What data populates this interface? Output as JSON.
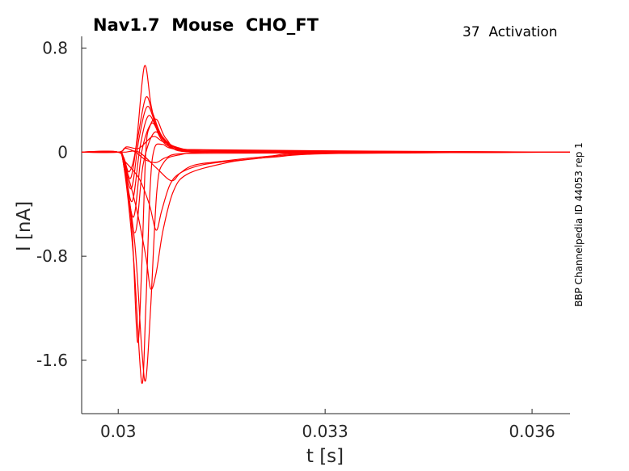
{
  "chart_data": {
    "type": "line",
    "title": "Nav1.7  Mouse  CHO_FT",
    "subtitle": "37  Activation",
    "side_label": "BBP Channelpedia ID 44053 rep 1",
    "xlabel": "t [s]",
    "ylabel": "I [nA]",
    "xlim": [
      0.02947,
      0.03655
    ],
    "ylim": [
      -2.01,
      0.89
    ],
    "xticks": [
      {
        "v": 0.03,
        "label": "0.03"
      },
      {
        "v": 0.033,
        "label": "0.033"
      },
      {
        "v": 0.036,
        "label": "0.036"
      }
    ],
    "yticks": [
      {
        "v": 0.8,
        "label": "0.8"
      },
      {
        "v": 0,
        "label": "0"
      },
      {
        "v": -0.8,
        "label": "-0.8"
      },
      {
        "v": -1.6,
        "label": "-1.6"
      }
    ],
    "grid": false,
    "color": "#ff0000",
    "series": [
      {
        "name": "trace-1",
        "points": [
          [
            0.02947,
            0
          ],
          [
            0.03,
            0
          ],
          [
            0.03008,
            -0.04
          ],
          [
            0.03016,
            -0.15
          ],
          [
            0.03026,
            0.05
          ],
          [
            0.03038,
            0.66
          ],
          [
            0.03048,
            0.35
          ],
          [
            0.0306,
            0.12
          ],
          [
            0.0308,
            0.03
          ],
          [
            0.0312,
            0
          ],
          [
            0.03655,
            0
          ]
        ]
      },
      {
        "name": "trace-2",
        "points": [
          [
            0.02947,
            0
          ],
          [
            0.03,
            0
          ],
          [
            0.03008,
            -0.05
          ],
          [
            0.03018,
            -0.2
          ],
          [
            0.03028,
            0.1
          ],
          [
            0.0304,
            0.42
          ],
          [
            0.0305,
            0.3
          ],
          [
            0.03064,
            0.12
          ],
          [
            0.0309,
            0.02
          ],
          [
            0.0313,
            0
          ],
          [
            0.03655,
            0
          ]
        ]
      },
      {
        "name": "trace-3",
        "points": [
          [
            0.02947,
            0
          ],
          [
            0.03,
            0
          ],
          [
            0.03008,
            -0.06
          ],
          [
            0.03019,
            -0.28
          ],
          [
            0.0303,
            0.1
          ],
          [
            0.03042,
            0.35
          ],
          [
            0.03054,
            0.22
          ],
          [
            0.03068,
            0.08
          ],
          [
            0.031,
            0.01
          ],
          [
            0.03655,
            0
          ]
        ]
      },
      {
        "name": "trace-4",
        "points": [
          [
            0.02947,
            0
          ],
          [
            0.03,
            0
          ],
          [
            0.03008,
            -0.07
          ],
          [
            0.0302,
            -0.38
          ],
          [
            0.03032,
            0.05
          ],
          [
            0.03044,
            0.28
          ],
          [
            0.03058,
            0.16
          ],
          [
            0.03075,
            0.05
          ],
          [
            0.0311,
            0
          ],
          [
            0.03655,
            0
          ]
        ]
      },
      {
        "name": "trace-5",
        "points": [
          [
            0.02947,
            0
          ],
          [
            0.03,
            0
          ],
          [
            0.03008,
            -0.08
          ],
          [
            0.03022,
            -0.5
          ],
          [
            0.03034,
            0.0
          ],
          [
            0.03048,
            0.22
          ],
          [
            0.0306,
            0.14
          ],
          [
            0.0308,
            0.04
          ],
          [
            0.0312,
            0
          ],
          [
            0.03655,
            0
          ]
        ]
      },
      {
        "name": "trace-6",
        "points": [
          [
            0.02947,
            0
          ],
          [
            0.03,
            0
          ],
          [
            0.03008,
            -0.09
          ],
          [
            0.03024,
            -0.62
          ],
          [
            0.03036,
            -0.1
          ],
          [
            0.03052,
            0.15
          ],
          [
            0.03068,
            0.08
          ],
          [
            0.0309,
            0.02
          ],
          [
            0.0313,
            0
          ],
          [
            0.03655,
            0
          ]
        ]
      },
      {
        "name": "trace-7",
        "points": [
          [
            0.02947,
            0
          ],
          [
            0.03,
            0
          ],
          [
            0.03008,
            -0.1
          ],
          [
            0.0302,
            -0.6
          ],
          [
            0.03028,
            -1.46
          ],
          [
            0.03034,
            -0.9
          ],
          [
            0.0304,
            0.0
          ],
          [
            0.03046,
            0.2
          ],
          [
            0.03056,
            0.25
          ],
          [
            0.0307,
            0.1
          ],
          [
            0.031,
            0.02
          ],
          [
            0.03655,
            0
          ]
        ]
      },
      {
        "name": "trace-8",
        "points": [
          [
            0.02947,
            0
          ],
          [
            0.03,
            0
          ],
          [
            0.03008,
            -0.1
          ],
          [
            0.03022,
            -0.8
          ],
          [
            0.03034,
            -1.77
          ],
          [
            0.0304,
            -1.2
          ],
          [
            0.03046,
            -0.3
          ],
          [
            0.03052,
            0.02
          ],
          [
            0.03064,
            0.06
          ],
          [
            0.0309,
            0.02
          ],
          [
            0.03655,
            0
          ]
        ]
      },
      {
        "name": "trace-9",
        "points": [
          [
            0.02947,
            0
          ],
          [
            0.03,
            0
          ],
          [
            0.03008,
            -0.1
          ],
          [
            0.03024,
            -0.7
          ],
          [
            0.03034,
            -1.5
          ],
          [
            0.0304,
            -1.75
          ],
          [
            0.03047,
            -1.2
          ],
          [
            0.03056,
            -0.3
          ],
          [
            0.03066,
            -0.08
          ],
          [
            0.0309,
            -0.02
          ],
          [
            0.0315,
            0
          ],
          [
            0.03655,
            0
          ]
        ]
      },
      {
        "name": "trace-10",
        "points": [
          [
            0.02947,
            0
          ],
          [
            0.03,
            0
          ],
          [
            0.03008,
            -0.08
          ],
          [
            0.03025,
            -0.4
          ],
          [
            0.0304,
            -0.8
          ],
          [
            0.03047,
            -1.05
          ],
          [
            0.03055,
            -0.93
          ],
          [
            0.03065,
            -0.6
          ],
          [
            0.0308,
            -0.3
          ],
          [
            0.031,
            -0.17
          ],
          [
            0.0315,
            -0.09
          ],
          [
            0.032,
            -0.05
          ],
          [
            0.033,
            -0.01
          ],
          [
            0.03655,
            0
          ]
        ]
      },
      {
        "name": "trace-11",
        "points": [
          [
            0.02947,
            0
          ],
          [
            0.03,
            0
          ],
          [
            0.03008,
            -0.06
          ],
          [
            0.0303,
            -0.2
          ],
          [
            0.03045,
            -0.4
          ],
          [
            0.03055,
            -0.6
          ],
          [
            0.03063,
            -0.45
          ],
          [
            0.03075,
            -0.25
          ],
          [
            0.0309,
            -0.16
          ],
          [
            0.0312,
            -0.1
          ],
          [
            0.0316,
            -0.07
          ],
          [
            0.0322,
            -0.04
          ],
          [
            0.0332,
            -0.01
          ],
          [
            0.03655,
            0
          ]
        ]
      },
      {
        "name": "trace-12",
        "points": [
          [
            0.02947,
            0
          ],
          [
            0.03,
            0
          ],
          [
            0.0301,
            0.0
          ],
          [
            0.0303,
            0.0
          ],
          [
            0.03055,
            -0.12
          ],
          [
            0.03077,
            -0.22
          ],
          [
            0.0309,
            -0.16
          ],
          [
            0.0311,
            -0.1
          ],
          [
            0.0315,
            -0.07
          ],
          [
            0.0322,
            -0.03
          ],
          [
            0.0328,
            -0.01
          ],
          [
            0.03655,
            0
          ]
        ]
      },
      {
        "name": "trace-13",
        "points": [
          [
            0.02947,
            0
          ],
          [
            0.03,
            0
          ],
          [
            0.0301,
            0.03
          ],
          [
            0.03025,
            0.0
          ],
          [
            0.0304,
            -0.06
          ],
          [
            0.03055,
            -0.08
          ],
          [
            0.0307,
            -0.04
          ],
          [
            0.031,
            -0.01
          ],
          [
            0.03655,
            0
          ]
        ]
      },
      {
        "name": "trace-14",
        "points": [
          [
            0.02947,
            0
          ],
          [
            0.03,
            0
          ],
          [
            0.03012,
            0.04
          ],
          [
            0.0303,
            0.03
          ],
          [
            0.0305,
            0.12
          ],
          [
            0.03065,
            0.08
          ],
          [
            0.0309,
            0.03
          ],
          [
            0.0312,
            0.01
          ],
          [
            0.03655,
            0
          ]
        ]
      }
    ]
  }
}
